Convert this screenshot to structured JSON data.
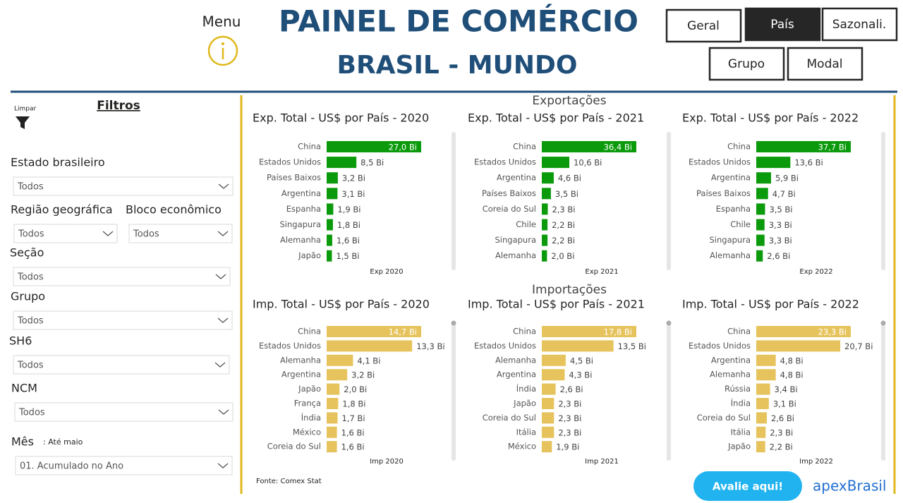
{
  "header": {
    "menu": "Menu",
    "title": "PAINEL DE COMÉRCIO",
    "subtitle": "BRASIL - MUNDO"
  },
  "nav": [
    {
      "label": "Geral"
    },
    {
      "label": "País",
      "active": true
    },
    {
      "label": "Sazonali."
    },
    {
      "label": "Grupo"
    },
    {
      "label": "Modal"
    }
  ],
  "filters": {
    "title": "Filtros",
    "clear": "Limpar",
    "items": [
      {
        "label": "Estado brasileiro",
        "value": "Todos"
      },
      {
        "label": "Região geográfica",
        "value": "Todos"
      },
      {
        "label": "Bloco econômico",
        "value": "Todos"
      },
      {
        "label": "Seção",
        "value": "Todos"
      },
      {
        "label": "Grupo",
        "value": "Todos"
      },
      {
        "label": "SH6",
        "value": "Todos"
      },
      {
        "label": "NCM",
        "value": "Todos"
      },
      {
        "label": "Mês",
        "note": ": Até maio",
        "value": "01. Acumulado no Ano"
      }
    ]
  },
  "sections": [
    "Exportações",
    "Importações"
  ],
  "chart_data": [
    {
      "type": "bar",
      "orientation": "horizontal",
      "title": "Exp. Total - US$ por País - 2020",
      "xlabel": "Exp 2020",
      "color": "#0b9a0b",
      "categories": [
        "China",
        "Estados Unidos",
        "Países Baixos",
        "Argentina",
        "Espanha",
        "Singapura",
        "Alemanha",
        "Japão"
      ],
      "values": [
        27.0,
        8.5,
        3.2,
        3.1,
        1.9,
        1.8,
        1.6,
        1.5
      ],
      "value_labels": [
        "27,0 Bi",
        "8,5 Bi",
        "3,2 Bi",
        "3,1 Bi",
        "1,9 Bi",
        "1,8 Bi",
        "1,6 Bi",
        "1,5 Bi"
      ]
    },
    {
      "type": "bar",
      "orientation": "horizontal",
      "title": "Exp. Total - US$ por País - 2021",
      "xlabel": "Exp 2021",
      "color": "#0b9a0b",
      "categories": [
        "China",
        "Estados Unidos",
        "Argentina",
        "Países Baixos",
        "Coreia do Sul",
        "Chile",
        "Singapura",
        "Alemanha"
      ],
      "values": [
        36.4,
        10.6,
        4.6,
        3.5,
        2.3,
        2.2,
        2.2,
        2.0
      ],
      "value_labels": [
        "36,4 Bi",
        "10,6 Bi",
        "4,6 Bi",
        "3,5 Bi",
        "2,3 Bi",
        "2,2 Bi",
        "2,2 Bi",
        "2,0 Bi"
      ]
    },
    {
      "type": "bar",
      "orientation": "horizontal",
      "title": "Exp. Total - US$ por País - 2022",
      "xlabel": "Exp 2022",
      "color": "#0b9a0b",
      "categories": [
        "China",
        "Estados Unidos",
        "Argentina",
        "Países Baixos",
        "Espanha",
        "Chile",
        "Singapura",
        "Alemanha"
      ],
      "values": [
        37.7,
        13.6,
        5.9,
        4.7,
        3.5,
        3.3,
        3.3,
        2.6
      ],
      "value_labels": [
        "37,7 Bi",
        "13,6 Bi",
        "5,9 Bi",
        "4,7 Bi",
        "3,5 Bi",
        "3,3 Bi",
        "3,3 Bi",
        "2,6 Bi"
      ]
    },
    {
      "type": "bar",
      "orientation": "horizontal",
      "title": "Imp. Total - US$ por País - 2020",
      "xlabel": "Imp 2020",
      "color": "#e6c35c",
      "categories": [
        "China",
        "Estados Unidos",
        "Alemanha",
        "Argentina",
        "Japão",
        "França",
        "Índia",
        "México",
        "Coreia do Sul"
      ],
      "values": [
        14.7,
        13.3,
        4.1,
        3.2,
        2.0,
        1.8,
        1.7,
        1.6,
        1.6
      ],
      "value_labels": [
        "14,7 Bi",
        "13,3 Bi",
        "4,1 Bi",
        "3,2 Bi",
        "2,0 Bi",
        "1,8 Bi",
        "1,7 Bi",
        "1,6 Bi",
        "1,6 Bi"
      ]
    },
    {
      "type": "bar",
      "orientation": "horizontal",
      "title": "Imp. Total - US$ por País - 2021",
      "xlabel": "Imp 2021",
      "color": "#e6c35c",
      "categories": [
        "China",
        "Estados Unidos",
        "Alemanha",
        "Argentina",
        "Índia",
        "Japão",
        "Coreia do Sul",
        "Itália",
        "México"
      ],
      "values": [
        17.8,
        13.5,
        4.5,
        4.3,
        2.6,
        2.3,
        2.3,
        2.3,
        1.9
      ],
      "value_labels": [
        "17,8 Bi",
        "13,5 Bi",
        "4,5 Bi",
        "4,3 Bi",
        "2,6 Bi",
        "2,3 Bi",
        "2,3 Bi",
        "2,3 Bi",
        "1,9 Bi"
      ]
    },
    {
      "type": "bar",
      "orientation": "horizontal",
      "title": "Imp. Total - US$ por País - 2022",
      "xlabel": "Imp 2022",
      "color": "#e6c35c",
      "categories": [
        "China",
        "Estados Unidos",
        "Argentina",
        "Alemanha",
        "Rússia",
        "Índia",
        "Coreia do Sul",
        "Itália",
        "Japão"
      ],
      "values": [
        23.3,
        20.7,
        4.8,
        4.8,
        3.4,
        3.1,
        2.6,
        2.3,
        2.2
      ],
      "value_labels": [
        "23,3 Bi",
        "20,7 Bi",
        "4,8 Bi",
        "4,8 Bi",
        "3,4 Bi",
        "3,1 Bi",
        "2,6 Bi",
        "2,3 Bi",
        "2,2 Bi"
      ]
    }
  ],
  "footer": {
    "source": "Fonte: Comex Stat",
    "button": "Avalie aqui!",
    "logo": "apexBrasil"
  }
}
